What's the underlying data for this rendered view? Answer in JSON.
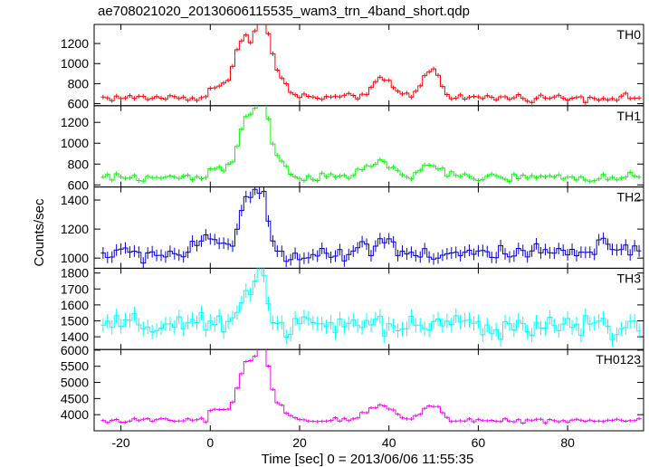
{
  "chart_data": {
    "type": "line",
    "title": "ae708021020_20130606115535_wam3_trn_4band_short.qdp",
    "xlabel": "Time [sec] 0 = 2013/06/06 11:55:35",
    "ylabel": "Counts/sec",
    "xlim": [
      -26,
      97
    ],
    "x_ticks": [
      -20,
      0,
      20,
      40,
      60,
      80
    ],
    "grid": false,
    "panels": [
      {
        "name": "TH0",
        "color": "#ff0000",
        "ylim": [
          580,
          1390
        ],
        "y_ticks": [
          600,
          800,
          1000,
          1200
        ],
        "baseline": 660,
        "noise": 18,
        "err": 22,
        "features": [
          {
            "x": 0,
            "x2": 6,
            "amp": 110,
            "kind": "step"
          },
          {
            "x": 7.5,
            "amp": 600,
            "w": 1.6,
            "kind": "gauss"
          },
          {
            "x": 11.5,
            "amp": 680,
            "w": 1.5,
            "kind": "gauss"
          },
          {
            "x": 14,
            "amp": 250,
            "w": 2.5,
            "kind": "gauss"
          },
          {
            "x": 38.5,
            "amp": 170,
            "w": 2.5,
            "kind": "gauss"
          },
          {
            "x": 49.5,
            "amp": 280,
            "w": 2.0,
            "kind": "gauss"
          }
        ]
      },
      {
        "name": "TH1",
        "color": "#00ff00",
        "ylim": [
          580,
          1360
        ],
        "y_ticks": [
          600,
          800,
          1000,
          1200
        ],
        "baseline": 670,
        "noise": 20,
        "err": 22,
        "features": [
          {
            "x": 0,
            "x2": 6,
            "amp": 90,
            "kind": "step"
          },
          {
            "x": 8,
            "amp": 580,
            "w": 1.5,
            "kind": "gauss"
          },
          {
            "x": 11.5,
            "amp": 650,
            "w": 1.4,
            "kind": "gauss"
          },
          {
            "x": 14,
            "amp": 200,
            "w": 2.5,
            "kind": "gauss"
          },
          {
            "x": 37.5,
            "amp": 150,
            "w": 3.0,
            "kind": "gauss"
          },
          {
            "x": 49.5,
            "amp": 140,
            "w": 2.0,
            "kind": "gauss"
          }
        ]
      },
      {
        "name": "TH2",
        "color": "#0000cc",
        "ylim": [
          930,
          1490
        ],
        "y_ticks": [
          1000,
          1200,
          1400
        ],
        "baseline": 1030,
        "noise": 30,
        "err": 40,
        "features": [
          {
            "x": 1,
            "amp": 100,
            "w": 3.0,
            "kind": "gauss"
          },
          {
            "x": 8,
            "amp": 340,
            "w": 1.5,
            "kind": "gauss"
          },
          {
            "x": 11.5,
            "amp": 420,
            "w": 1.4,
            "kind": "gauss"
          },
          {
            "x": 38.5,
            "amp": 90,
            "w": 3.0,
            "kind": "gauss"
          },
          {
            "x": 89,
            "amp": 80,
            "w": 1.5,
            "kind": "gauss"
          }
        ]
      },
      {
        "name": "TH3",
        "color": "#00ffff",
        "ylim": [
          1320,
          1830
        ],
        "y_ticks": [
          1400,
          1500,
          1600,
          1700,
          1800
        ],
        "baseline": 1470,
        "noise": 35,
        "err": 45,
        "features": [
          {
            "x": 8,
            "amp": 220,
            "w": 1.5,
            "kind": "gauss"
          },
          {
            "x": 11.5,
            "amp": 330,
            "w": 1.4,
            "kind": "gauss"
          }
        ]
      },
      {
        "name": "TH0123",
        "color": "#ff00ff",
        "ylim": [
          3500,
          6020
        ],
        "y_ticks": [
          4000,
          4500,
          5000,
          5500,
          6000
        ],
        "baseline": 3820,
        "noise": 40,
        "err": 50,
        "features": [
          {
            "x": 0,
            "x2": 6,
            "amp": 330,
            "kind": "step"
          },
          {
            "x": 8,
            "amp": 1700,
            "w": 1.5,
            "kind": "gauss"
          },
          {
            "x": 11.5,
            "amp": 2050,
            "w": 1.4,
            "kind": "gauss"
          },
          {
            "x": 14,
            "amp": 500,
            "w": 2.5,
            "kind": "gauss"
          },
          {
            "x": 38,
            "amp": 450,
            "w": 3.0,
            "kind": "gauss"
          },
          {
            "x": 49.5,
            "amp": 500,
            "w": 2.0,
            "kind": "gauss"
          }
        ]
      }
    ]
  }
}
